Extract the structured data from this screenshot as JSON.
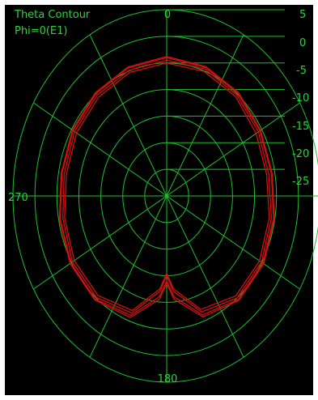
{
  "chart_data": {
    "type": "polar-contour",
    "title_lines": [
      "Theta Contour",
      "Phi=0(E1)"
    ],
    "angle_labels": [
      "0",
      "270",
      "180"
    ],
    "radial_tick_labels": [
      "5",
      "0",
      "-5",
      "-10",
      "-15",
      "-20",
      "-25"
    ],
    "radial_range_db": [
      -30,
      5
    ],
    "grid": true,
    "background": "#000000",
    "grid_color": "#1fbf2f",
    "label_color": "#2bd33a",
    "trace_color": "#d01010",
    "series": [
      {
        "theta_deg": [
          0,
          20,
          40,
          60,
          80,
          100,
          120,
          140,
          160,
          175,
          180,
          185,
          200,
          220,
          240,
          260,
          280,
          300,
          320,
          340,
          360
        ],
        "gain_db": [
          -4,
          -4.3,
          -4.8,
          -5.5,
          -5.8,
          -5.3,
          -4.7,
          -4.6,
          -6.2,
          -11,
          -14,
          -11,
          -6.1,
          -4.7,
          -4.8,
          -5.4,
          -5.8,
          -5.4,
          -4.9,
          -4.4,
          -4
        ]
      },
      {
        "theta_deg": [
          0,
          20,
          40,
          60,
          80,
          100,
          120,
          140,
          160,
          175,
          180,
          185,
          200,
          220,
          240,
          260,
          280,
          300,
          320,
          340,
          360
        ],
        "gain_db": [
          -4.5,
          -4.6,
          -5.2,
          -5.9,
          -6.4,
          -5.8,
          -5.1,
          -5,
          -6.8,
          -12,
          -15,
          -12,
          -6.6,
          -5.1,
          -5.2,
          -6,
          -6.3,
          -5.8,
          -5.3,
          -4.9,
          -4.5
        ]
      },
      {
        "theta_deg": [
          0,
          20,
          40,
          60,
          80,
          100,
          120,
          140,
          160,
          175,
          180,
          185,
          200,
          220,
          240,
          260,
          280,
          300,
          320,
          340,
          360
        ],
        "gain_db": [
          -3.8,
          -4.1,
          -4.6,
          -5.3,
          -5.6,
          -5.1,
          -4.5,
          -4.4,
          -5.8,
          -10.5,
          -13.5,
          -10.5,
          -5.7,
          -4.5,
          -4.6,
          -5.2,
          -5.6,
          -5.2,
          -4.7,
          -4.2,
          -3.8
        ]
      },
      {
        "theta_deg": [
          0,
          20,
          40,
          60,
          80,
          100,
          120,
          140,
          160,
          175,
          180,
          185,
          200,
          220,
          240,
          260,
          280,
          300,
          320,
          340,
          360
        ],
        "gain_db": [
          -5,
          -5.1,
          -5.6,
          -6.5,
          -6.9,
          -6.3,
          -5.6,
          -5.5,
          -7.3,
          -12.5,
          -15.5,
          -12.5,
          -7.1,
          -5.6,
          -5.7,
          -6.4,
          -6.8,
          -6.3,
          -5.8,
          -5.3,
          -5
        ]
      }
    ]
  }
}
